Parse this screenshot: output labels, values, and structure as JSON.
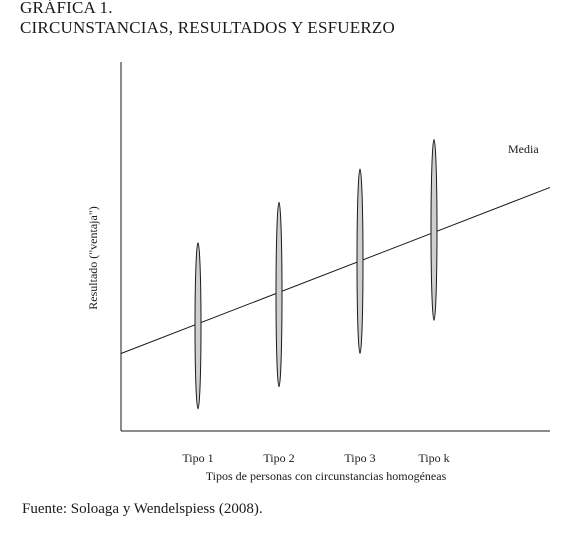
{
  "header": {
    "figure_number": "GRÁFICA 1.",
    "figure_title": "CIRCUNSTANCIAS, RESULTADOS Y ESFUERZO"
  },
  "chart_data": {
    "type": "line",
    "title": "CIRCUNSTANCIAS, RESULTADOS Y ESFUERZO",
    "xlabel": "Tipos de personas con circunstancias homogéneas",
    "ylabel": "Resultado (\"ventaja\")",
    "categories": [
      "Tipo 1",
      "Tipo 2",
      "Tipo 3",
      "Tipo k"
    ],
    "series": [
      {
        "name": "Media",
        "line_start": 0.21,
        "line_end": 0.66,
        "values": [
          0.28,
          0.36,
          0.45,
          0.54
        ]
      }
    ],
    "distributions": [
      {
        "category": "Tipo 1",
        "low": 0.06,
        "high": 0.51
      },
      {
        "category": "Tipo 2",
        "low": 0.12,
        "high": 0.62
      },
      {
        "category": "Tipo 3",
        "low": 0.21,
        "high": 0.71
      },
      {
        "category": "Tipo k",
        "low": 0.3,
        "high": 0.79
      }
    ],
    "ylim": [
      0,
      1
    ],
    "grid": false,
    "axis_ticks": false,
    "colors": {
      "line": "#1a1a1a",
      "ellipse_fill": "#cfcfcf",
      "ellipse_stroke": "#1a1a1a"
    }
  },
  "source": {
    "text": "Fuente: Soloaga y Wendelspiess (2008)."
  }
}
